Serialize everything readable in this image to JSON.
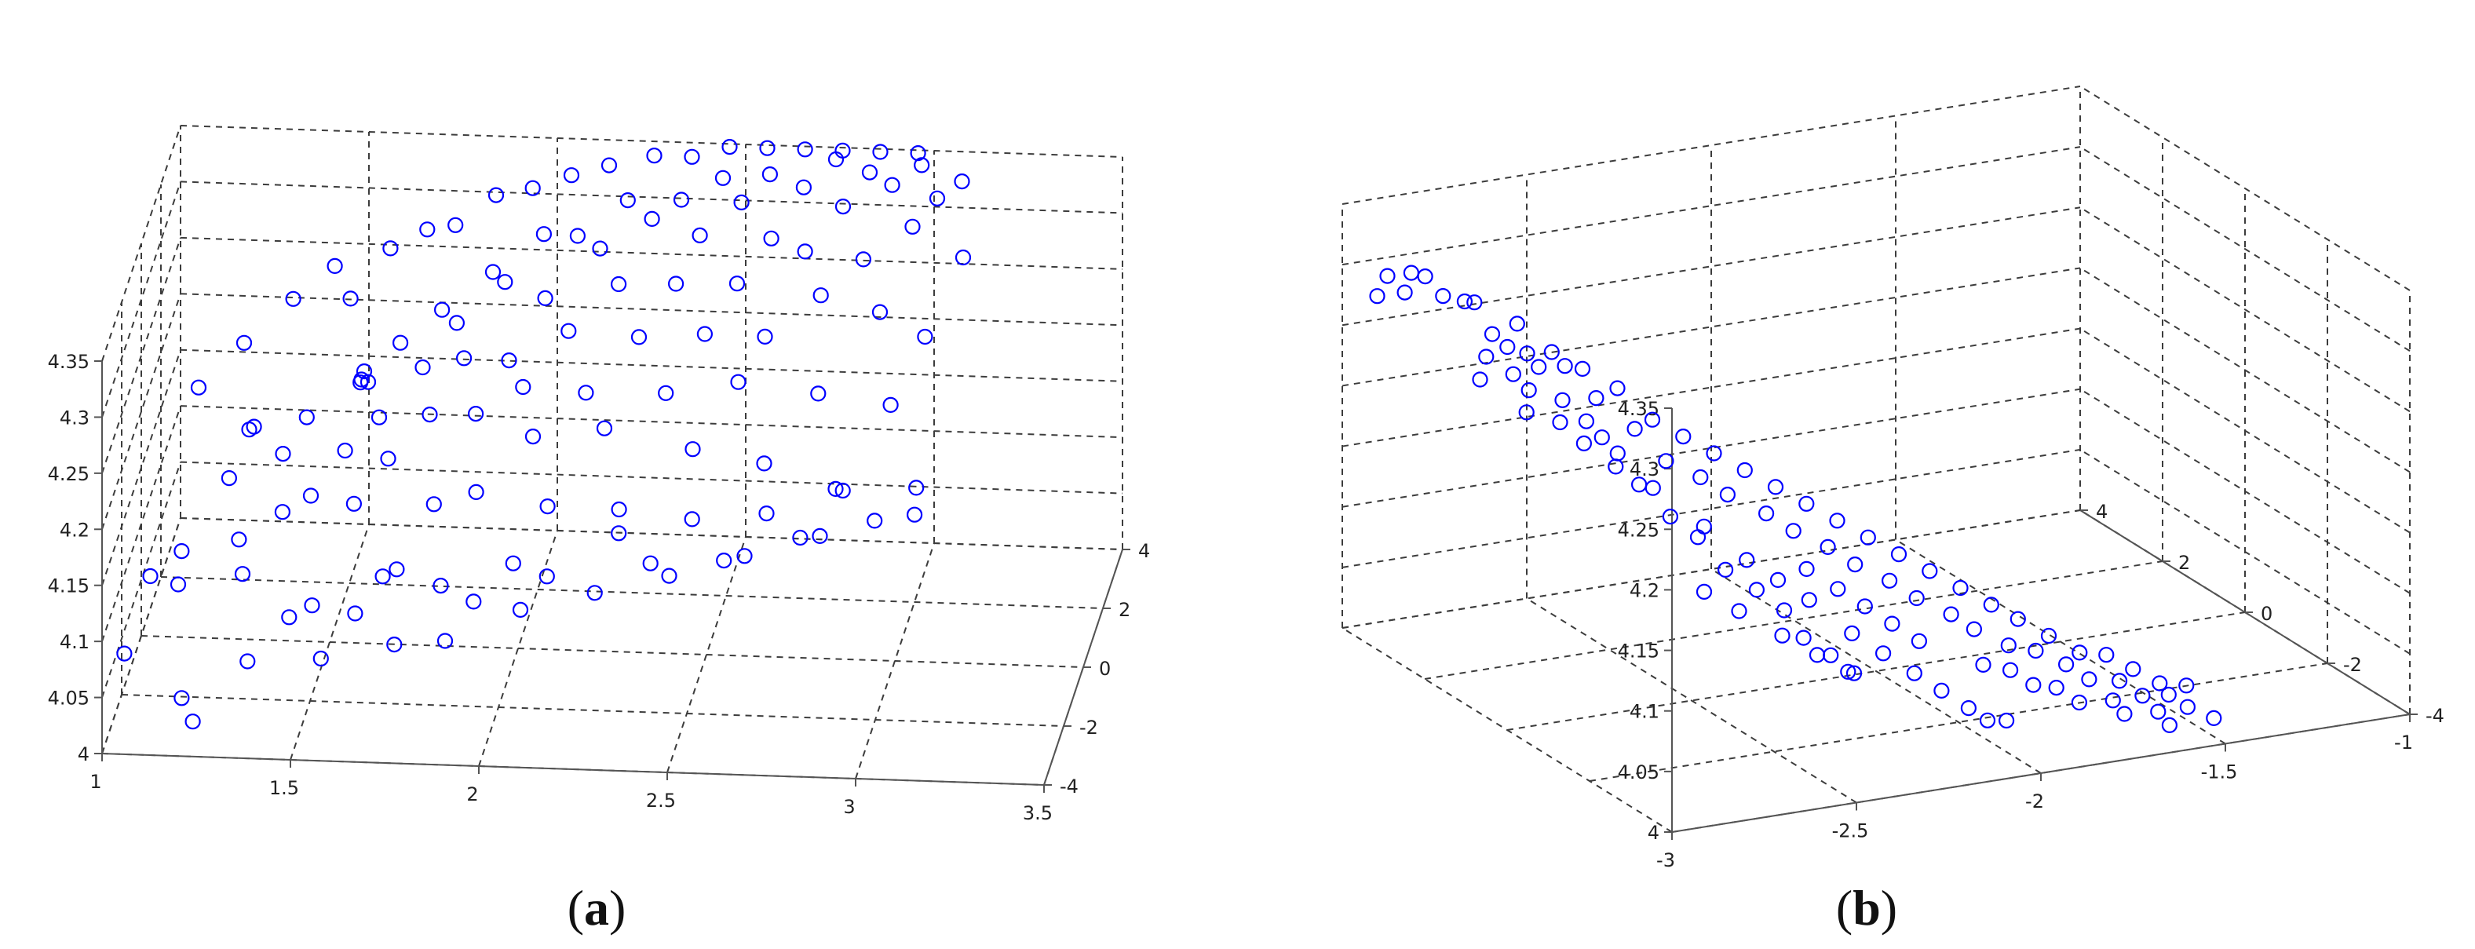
{
  "figure": {
    "captions": {
      "a": {
        "open": "(",
        "letter": "a",
        "close": ")"
      },
      "b": {
        "open": "(",
        "letter": "b",
        "close": ")"
      }
    },
    "colors": {
      "marker": "#0000ff",
      "grid": "#3c3c3c",
      "axis": "#555555"
    }
  },
  "chart_data": [
    {
      "id": "a",
      "type": "scatter",
      "projection": "3d",
      "marker": "circle-open",
      "grid": true,
      "xlim": [
        1,
        3.5
      ],
      "ylim": [
        -4,
        4
      ],
      "zlim": [
        4,
        4.35
      ],
      "x_ticks": [
        "1",
        "1.5",
        "2",
        "2.5",
        "3",
        "3.5"
      ],
      "y_ticks": [
        "-4",
        "-2",
        "0",
        "2",
        "4"
      ],
      "z_ticks": [
        "4",
        "4.05",
        "4.1",
        "4.15",
        "4.2",
        "4.25",
        "4.3",
        "4.35"
      ],
      "points": [
        [
          1.02,
          -2.5,
          4.05
        ],
        [
          1.05,
          -1.0,
          4.08
        ],
        [
          1.12,
          -0.5,
          4.09
        ],
        [
          1.15,
          -2.0,
          4.1
        ],
        [
          1.18,
          -2.8,
          4.02
        ],
        [
          1.22,
          -3.2,
          4.01
        ],
        [
          1.28,
          -0.8,
          4.11
        ],
        [
          1.22,
          0.5,
          4.13
        ],
        [
          1.3,
          -1.2,
          4.09
        ],
        [
          1.35,
          1.0,
          4.14
        ],
        [
          1.38,
          -0.2,
          4.12
        ],
        [
          1.4,
          1.5,
          4.16
        ],
        [
          1.45,
          0.0,
          4.13
        ],
        [
          1.5,
          -1.8,
          4.08
        ],
        [
          1.52,
          0.8,
          4.15
        ],
        [
          1.55,
          2.0,
          4.18
        ],
        [
          1.58,
          -0.6,
          4.14
        ],
        [
          1.6,
          1.2,
          4.17
        ],
        [
          1.62,
          2.6,
          4.2
        ],
        [
          1.65,
          0.2,
          4.16
        ],
        [
          1.68,
          -1.5,
          4.1
        ],
        [
          1.7,
          1.8,
          4.2
        ],
        [
          1.72,
          3.0,
          4.22
        ],
        [
          1.75,
          0.6,
          4.19
        ],
        [
          1.78,
          2.2,
          4.23
        ],
        [
          1.8,
          -0.9,
          4.15
        ],
        [
          1.82,
          1.4,
          4.22
        ],
        [
          1.85,
          3.2,
          4.25
        ],
        [
          1.88,
          0.3,
          4.2
        ],
        [
          1.9,
          2.5,
          4.26
        ],
        [
          1.92,
          -1.2,
          4.17
        ],
        [
          1.95,
          1.0,
          4.23
        ],
        [
          1.98,
          3.4,
          4.28
        ],
        [
          2.0,
          0.5,
          4.22
        ],
        [
          2.02,
          2.0,
          4.26
        ],
        [
          2.05,
          -0.4,
          4.2
        ],
        [
          2.08,
          3.0,
          4.29
        ],
        [
          2.1,
          1.3,
          4.25
        ],
        [
          2.12,
          -1.6,
          4.17
        ],
        [
          2.15,
          2.6,
          4.29
        ],
        [
          2.18,
          0.0,
          4.23
        ],
        [
          2.2,
          3.5,
          4.31
        ],
        [
          2.22,
          1.8,
          4.28
        ],
        [
          2.25,
          -0.8,
          4.22
        ],
        [
          2.28,
          2.9,
          4.31
        ],
        [
          2.3,
          0.8,
          4.26
        ],
        [
          2.32,
          -2.0,
          4.18
        ],
        [
          2.35,
          3.2,
          4.32
        ],
        [
          2.38,
          1.5,
          4.29
        ],
        [
          2.4,
          -0.3,
          4.24
        ],
        [
          2.42,
          2.4,
          4.31
        ],
        [
          2.45,
          3.6,
          4.33
        ],
        [
          2.48,
          0.6,
          4.27
        ],
        [
          2.5,
          -1.4,
          4.22
        ],
        [
          2.52,
          2.8,
          4.33
        ],
        [
          2.55,
          1.2,
          4.3
        ],
        [
          2.58,
          3.4,
          4.34
        ],
        [
          2.6,
          -0.6,
          4.26
        ],
        [
          2.62,
          2.0,
          4.32
        ],
        [
          2.65,
          0.2,
          4.28
        ],
        [
          2.68,
          3.0,
          4.34
        ],
        [
          2.7,
          -1.8,
          4.22
        ],
        [
          2.72,
          1.6,
          4.32
        ],
        [
          2.75,
          3.6,
          4.35
        ],
        [
          2.78,
          0.9,
          4.3
        ],
        [
          2.8,
          2.4,
          4.34
        ],
        [
          2.82,
          -0.9,
          4.26
        ],
        [
          2.85,
          3.2,
          4.35
        ],
        [
          2.88,
          1.4,
          4.32
        ],
        [
          2.9,
          -2.2,
          4.21
        ],
        [
          2.92,
          2.8,
          4.35
        ],
        [
          2.95,
          0.4,
          4.3
        ],
        [
          2.98,
          3.5,
          4.35
        ],
        [
          3.0,
          1.8,
          4.34
        ],
        [
          3.02,
          -1.2,
          4.26
        ],
        [
          3.05,
          2.4,
          4.35
        ],
        [
          3.08,
          0.0,
          4.29
        ],
        [
          3.1,
          3.0,
          4.35
        ],
        [
          3.12,
          -2.6,
          4.2
        ],
        [
          3.15,
          1.2,
          4.33
        ],
        [
          1.1,
          2.0,
          4.17
        ],
        [
          1.2,
          2.8,
          4.19
        ],
        [
          1.32,
          3.2,
          4.22
        ],
        [
          1.42,
          3.6,
          4.24
        ],
        [
          1.48,
          2.9,
          4.23
        ],
        [
          1.57,
          3.5,
          4.26
        ],
        [
          1.66,
          3.8,
          4.27
        ],
        [
          1.74,
          3.6,
          4.28
        ],
        [
          1.84,
          3.9,
          4.3
        ],
        [
          1.94,
          3.8,
          4.31
        ],
        [
          2.04,
          3.9,
          4.32
        ],
        [
          2.14,
          3.9,
          4.33
        ],
        [
          2.26,
          3.9,
          4.34
        ],
        [
          2.36,
          3.9,
          4.34
        ],
        [
          2.46,
          3.9,
          4.35
        ],
        [
          2.56,
          3.9,
          4.35
        ],
        [
          2.66,
          3.9,
          4.35
        ],
        [
          2.76,
          3.9,
          4.35
        ],
        [
          2.86,
          3.9,
          4.35
        ],
        [
          2.96,
          3.9,
          4.35
        ],
        [
          1.54,
          1.6,
          4.19
        ],
        [
          1.54,
          1.7,
          4.19
        ],
        [
          1.55,
          1.6,
          4.2
        ],
        [
          1.25,
          1.4,
          4.15
        ],
        [
          1.26,
          1.5,
          4.15
        ],
        [
          1.63,
          -2.4,
          4.09
        ],
        [
          1.73,
          -2.0,
          4.12
        ],
        [
          1.86,
          -2.5,
          4.12
        ],
        [
          1.96,
          -3.0,
          4.12
        ],
        [
          2.06,
          -2.8,
          4.15
        ],
        [
          2.16,
          -3.2,
          4.15
        ],
        [
          2.34,
          -2.8,
          4.18
        ],
        [
          2.44,
          -3.4,
          4.17
        ],
        [
          2.54,
          -3.0,
          4.2
        ],
        [
          2.64,
          -3.6,
          4.18
        ],
        [
          2.74,
          -3.1,
          4.21
        ],
        [
          2.84,
          -3.5,
          4.2
        ],
        [
          2.94,
          -3.0,
          4.23
        ],
        [
          3.04,
          -3.6,
          4.22
        ],
        [
          3.14,
          -3.2,
          4.24
        ],
        [
          1.36,
          -3.0,
          4.06
        ],
        [
          1.46,
          -2.6,
          4.09
        ],
        [
          1.56,
          -3.2,
          4.07
        ],
        [
          1.76,
          -3.4,
          4.09
        ],
        [
          1.9,
          -3.6,
          4.1
        ],
        [
          2.1,
          -3.6,
          4.13
        ],
        [
          2.3,
          -3.7,
          4.15
        ],
        [
          2.5,
          -3.8,
          4.17
        ],
        [
          2.7,
          -3.8,
          4.19
        ],
        [
          2.9,
          -3.8,
          4.21
        ]
      ]
    },
    {
      "id": "b",
      "type": "scatter",
      "projection": "3d",
      "marker": "circle-open",
      "grid": true,
      "xlim": [
        -3,
        -1
      ],
      "ylim": [
        -4,
        4
      ],
      "zlim": [
        4,
        4.35
      ],
      "x_ticks": [
        "-3",
        "-2.5",
        "-2",
        "-1.5",
        "-1"
      ],
      "y_ticks": [
        "-4",
        "-2",
        "0",
        "2",
        "4"
      ],
      "z_ticks": [
        "4",
        "4.05",
        "4.1",
        "4.15",
        "4.2",
        "4.25",
        "4.3",
        "4.35"
      ],
      "points": [
        [
          -2.95,
          3.6,
          4.28
        ],
        [
          -2.92,
          3.2,
          4.29
        ],
        [
          -2.9,
          3.8,
          4.29
        ],
        [
          -2.88,
          3.4,
          4.3
        ],
        [
          -2.85,
          2.9,
          4.29
        ],
        [
          -2.82,
          3.6,
          4.29
        ],
        [
          -2.78,
          3.0,
          4.28
        ],
        [
          -2.75,
          2.6,
          4.26
        ],
        [
          -2.72,
          3.3,
          4.27
        ],
        [
          -2.7,
          2.2,
          4.25
        ],
        [
          -2.66,
          2.8,
          4.26
        ],
        [
          -2.62,
          2.0,
          4.24
        ],
        [
          -2.6,
          2.5,
          4.24
        ],
        [
          -2.58,
          1.6,
          4.22
        ],
        [
          -2.55,
          2.2,
          4.23
        ],
        [
          -2.52,
          1.2,
          4.2
        ],
        [
          -2.5,
          1.8,
          4.22
        ],
        [
          -2.48,
          0.8,
          4.18
        ],
        [
          -2.45,
          1.4,
          4.2
        ],
        [
          -2.42,
          0.5,
          4.17
        ],
        [
          -2.4,
          1.1,
          4.19
        ],
        [
          -2.38,
          0.2,
          4.16
        ],
        [
          -2.35,
          0.8,
          4.18
        ],
        [
          -2.32,
          -0.2,
          4.15
        ],
        [
          -2.3,
          0.5,
          4.17
        ],
        [
          -2.28,
          -0.5,
          4.14
        ],
        [
          -2.25,
          0.2,
          4.16
        ],
        [
          -2.22,
          -0.8,
          4.13
        ],
        [
          -2.2,
          -0.1,
          4.15
        ],
        [
          -2.18,
          -1.1,
          4.12
        ],
        [
          -2.15,
          -0.4,
          4.14
        ],
        [
          -2.12,
          -1.4,
          4.11
        ],
        [
          -2.1,
          -0.7,
          4.13
        ],
        [
          -2.08,
          -1.7,
          4.1
        ],
        [
          -2.05,
          -1.0,
          4.12
        ],
        [
          -2.02,
          -2.0,
          4.09
        ],
        [
          -2.0,
          -1.3,
          4.11
        ],
        [
          -1.98,
          -2.2,
          4.08
        ],
        [
          -1.95,
          -1.6,
          4.1
        ],
        [
          -1.92,
          -2.5,
          4.07
        ],
        [
          -1.9,
          -1.9,
          4.09
        ],
        [
          -1.88,
          -2.8,
          4.07
        ],
        [
          -1.85,
          -2.1,
          4.08
        ],
        [
          -1.82,
          -3.0,
          4.06
        ],
        [
          -1.8,
          -2.4,
          4.07
        ],
        [
          -1.78,
          -3.2,
          4.05
        ],
        [
          -1.75,
          -2.7,
          4.06
        ],
        [
          -1.72,
          -3.4,
          4.05
        ],
        [
          -1.7,
          -2.9,
          4.06
        ],
        [
          -1.68,
          -3.6,
          4.04
        ],
        [
          -1.65,
          -3.1,
          4.05
        ],
        [
          -1.62,
          -3.7,
          4.04
        ],
        [
          -1.6,
          -3.3,
          4.04
        ],
        [
          -1.58,
          -3.8,
          4.03
        ],
        [
          -1.55,
          -3.5,
          4.04
        ],
        [
          -2.65,
          0.5,
          4.19
        ],
        [
          -2.62,
          0.2,
          4.18
        ],
        [
          -2.58,
          -0.2,
          4.16
        ],
        [
          -2.55,
          -0.6,
          4.15
        ],
        [
          -2.52,
          -1.0,
          4.13
        ],
        [
          -2.48,
          -1.4,
          4.12
        ],
        [
          -2.45,
          -1.8,
          4.11
        ],
        [
          -2.42,
          -2.0,
          4.09
        ],
        [
          -2.38,
          -2.3,
          4.08
        ],
        [
          -2.35,
          -2.6,
          4.07
        ],
        [
          -2.68,
          1.0,
          4.2
        ],
        [
          -2.64,
          1.3,
          4.21
        ],
        [
          -2.6,
          0.9,
          4.19
        ],
        [
          -2.56,
          0.4,
          4.17
        ],
        [
          -2.5,
          -0.3,
          4.15
        ],
        [
          -2.44,
          -0.8,
          4.13
        ],
        [
          -2.4,
          -1.2,
          4.12
        ],
        [
          -2.36,
          -1.6,
          4.11
        ],
        [
          -2.3,
          -2.1,
          4.09
        ],
        [
          -2.26,
          -2.5,
          4.08
        ],
        [
          -2.22,
          -2.9,
          4.07
        ],
        [
          -2.18,
          -3.2,
          4.06
        ],
        [
          -2.14,
          -3.5,
          4.05
        ],
        [
          -2.1,
          -3.6,
          4.04
        ],
        [
          -2.06,
          -3.7,
          4.04
        ],
        [
          -2.78,
          1.5,
          4.22
        ],
        [
          -2.74,
          1.8,
          4.23
        ],
        [
          -2.7,
          1.4,
          4.21
        ],
        [
          -2.66,
          1.7,
          4.22
        ],
        [
          -2.62,
          1.1,
          4.2
        ],
        [
          -2.85,
          2.0,
          4.24
        ],
        [
          -2.8,
          2.3,
          4.25
        ],
        [
          -2.76,
          2.0,
          4.24
        ],
        [
          -2.72,
          2.5,
          4.25
        ],
        [
          -2.68,
          2.1,
          4.24
        ],
        [
          -2.6,
          -1.2,
          4.12
        ],
        [
          -2.55,
          -1.6,
          4.11
        ],
        [
          -2.5,
          -2.2,
          4.1
        ],
        [
          -2.45,
          -2.6,
          4.09
        ],
        [
          -2.4,
          -2.9,
          4.08
        ],
        [
          -2.0,
          -2.6,
          4.06
        ],
        [
          -1.96,
          -2.9,
          4.06
        ],
        [
          -1.92,
          -3.1,
          4.05
        ],
        [
          -1.88,
          -3.3,
          4.05
        ],
        [
          -1.84,
          -3.5,
          4.04
        ],
        [
          -2.3,
          -1.0,
          4.12
        ],
        [
          -2.26,
          -1.4,
          4.11
        ],
        [
          -2.22,
          -1.7,
          4.1
        ],
        [
          -2.18,
          -2.0,
          4.09
        ],
        [
          -2.14,
          -2.3,
          4.08
        ],
        [
          -1.76,
          -3.6,
          4.04
        ],
        [
          -1.74,
          -3.7,
          4.03
        ],
        [
          -1.66,
          -3.8,
          4.03
        ],
        [
          -1.64,
          -3.9,
          4.02
        ],
        [
          -1.52,
          -3.9,
          4.02
        ]
      ]
    }
  ]
}
